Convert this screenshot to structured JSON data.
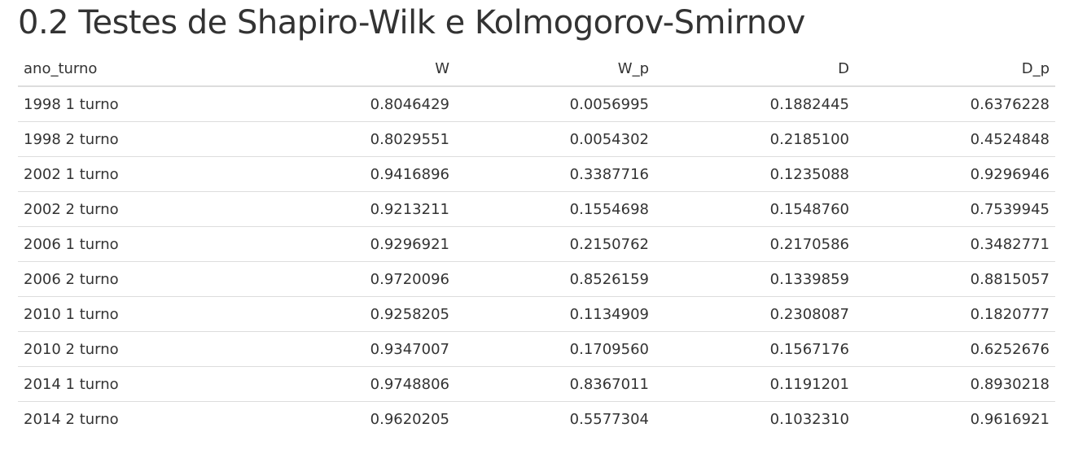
{
  "page": {
    "title": "0.2 Testes de Shapiro-Wilk e Kolmogorov-Smirnov"
  },
  "table": {
    "headers": [
      "ano_turno",
      "W",
      "W_p",
      "D",
      "D_p"
    ],
    "rows": [
      [
        "1998 1 turno",
        "0.8046429",
        "0.0056995",
        "0.1882445",
        "0.6376228"
      ],
      [
        "1998 2 turno",
        "0.8029551",
        "0.0054302",
        "0.2185100",
        "0.4524848"
      ],
      [
        "2002 1 turno",
        "0.9416896",
        "0.3387716",
        "0.1235088",
        "0.9296946"
      ],
      [
        "2002 2 turno",
        "0.9213211",
        "0.1554698",
        "0.1548760",
        "0.7539945"
      ],
      [
        "2006 1 turno",
        "0.9296921",
        "0.2150762",
        "0.2170586",
        "0.3482771"
      ],
      [
        "2006 2 turno",
        "0.9720096",
        "0.8526159",
        "0.1339859",
        "0.8815057"
      ],
      [
        "2010 1 turno",
        "0.9258205",
        "0.1134909",
        "0.2308087",
        "0.1820777"
      ],
      [
        "2010 2 turno",
        "0.9347007",
        "0.1709560",
        "0.1567176",
        "0.6252676"
      ],
      [
        "2014 1 turno",
        "0.9748806",
        "0.8367011",
        "0.1191201",
        "0.8930218"
      ],
      [
        "2014 2 turno",
        "0.9620205",
        "0.5577304",
        "0.1032310",
        "0.9616921"
      ]
    ]
  }
}
